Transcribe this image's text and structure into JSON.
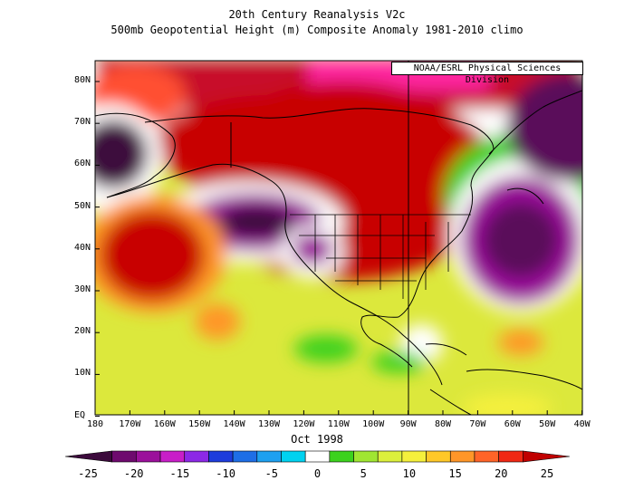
{
  "title_line1": "20th Century Reanalysis V2c",
  "title_line2": "500mb Geopotential Height (m) Composite Anomaly 1981-2010 climo",
  "credit": "NOAA/ESRL Physical Sciences Division",
  "date_label": "Oct 1998",
  "lat_labels": [
    "80N",
    "70N",
    "60N",
    "50N",
    "40N",
    "30N",
    "20N",
    "10N",
    "EQ"
  ],
  "lon_labels": [
    "180",
    "170W",
    "160W",
    "150W",
    "140W",
    "130W",
    "120W",
    "110W",
    "100W",
    "90W",
    "80W",
    "70W",
    "60W",
    "50W",
    "40W"
  ],
  "colorbar": {
    "tick_labels": [
      "-25",
      "-20",
      "-15",
      "-10",
      "-5",
      "0",
      "5",
      "10",
      "15",
      "20",
      "25"
    ],
    "colors": [
      "#3c0a3c",
      "#6e0a6e",
      "#9b109b",
      "#c81ec8",
      "#8c28e6",
      "#1e3cdc",
      "#1e6ee6",
      "#1ea0f0",
      "#00d2f0",
      "#ffffff",
      "#3cd21e",
      "#a0e632",
      "#dcf03c",
      "#f5f03c",
      "#ffc828",
      "#ff9628",
      "#ff6428",
      "#f02814",
      "#c00000"
    ]
  }
}
